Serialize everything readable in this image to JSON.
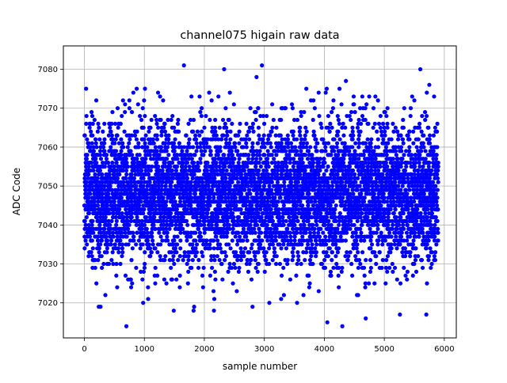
{
  "chart_data": {
    "type": "scatter",
    "title": "channel075 higain raw data",
    "xlabel": "sample number",
    "ylabel": "ADC Code",
    "xlim": [
      -350,
      6200
    ],
    "ylim": [
      7011,
      7086
    ],
    "x_ticks": [
      0,
      1000,
      2000,
      3000,
      4000,
      5000,
      6000
    ],
    "y_ticks": [
      7020,
      7030,
      7040,
      7050,
      7060,
      7070,
      7080
    ],
    "grid": true,
    "legend": "none",
    "marker_color": "#0000ff",
    "series": [
      {
        "n_points": 6000,
        "x_range": [
          0,
          5900
        ],
        "mean": 7048,
        "stdev": 9,
        "min": 7014,
        "max": 7081,
        "outliers": [
          {
            "x": 240,
            "y": 7019
          },
          {
            "x": 350,
            "y": 7022
          },
          {
            "x": 700,
            "y": 7014
          },
          {
            "x": 980,
            "y": 7020
          },
          {
            "x": 1010,
            "y": 7075
          },
          {
            "x": 1660,
            "y": 7081
          },
          {
            "x": 1830,
            "y": 7019
          },
          {
            "x": 2080,
            "y": 7074
          },
          {
            "x": 2160,
            "y": 7018
          },
          {
            "x": 2330,
            "y": 7080
          },
          {
            "x": 2870,
            "y": 7078
          },
          {
            "x": 2960,
            "y": 7081
          },
          {
            "x": 3700,
            "y": 7075
          },
          {
            "x": 4050,
            "y": 7015
          },
          {
            "x": 4040,
            "y": 7075
          },
          {
            "x": 4300,
            "y": 7014
          },
          {
            "x": 4360,
            "y": 7077
          },
          {
            "x": 4690,
            "y": 7016
          },
          {
            "x": 5000,
            "y": 7069
          },
          {
            "x": 5260,
            "y": 7017
          },
          {
            "x": 5600,
            "y": 7080
          },
          {
            "x": 5700,
            "y": 7017
          },
          {
            "x": 5750,
            "y": 7076
          },
          {
            "x": 5830,
            "y": 7073
          }
        ]
      }
    ]
  }
}
